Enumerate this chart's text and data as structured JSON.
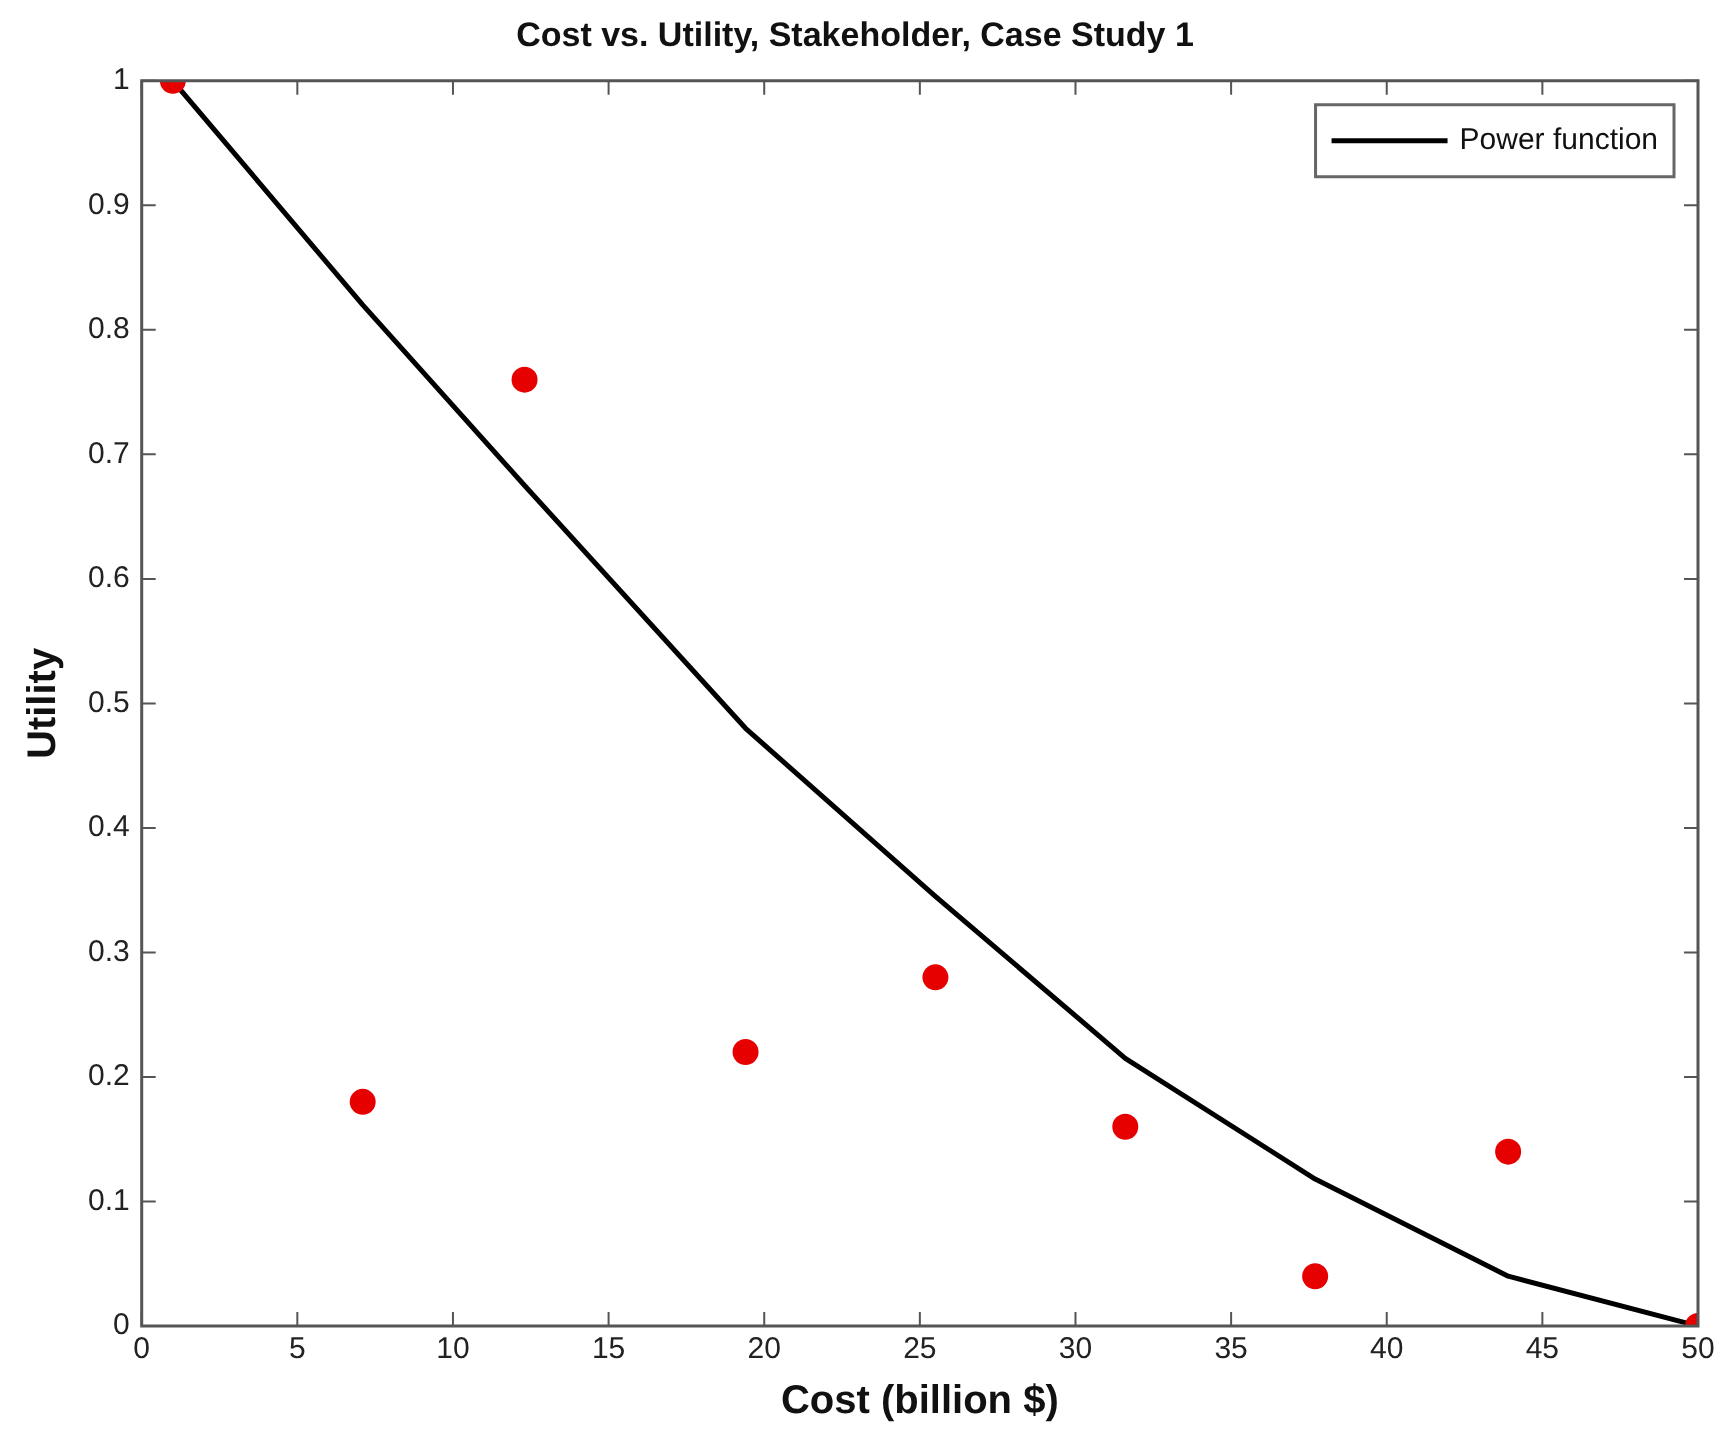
{
  "chart_data": {
    "type": "scatter",
    "title": "Cost vs. Utility, Stakeholder, Case Study 1",
    "xlabel": "Cost (billion $)",
    "ylabel": "Utility",
    "xlim": [
      0,
      50
    ],
    "xticks": [
      0,
      5,
      10,
      15,
      20,
      25,
      30,
      35,
      40,
      45,
      50
    ],
    "ylim": [
      0,
      1
    ],
    "yticks": [
      0,
      0.1,
      0.2,
      0.3,
      0.4,
      0.5,
      0.6,
      0.7,
      0.8,
      0.9,
      1
    ],
    "grid": false,
    "legend": "top right",
    "series": [
      {
        "type": "scatter",
        "color": "#e60000",
        "marker": "circle",
        "x": [
          1,
          7.1,
          12.3,
          19.4,
          25.5,
          31.6,
          37.7,
          43.9,
          50
        ],
        "values": [
          1,
          0.18,
          0.76,
          0.22,
          0.28,
          0.16,
          0.04,
          0.14,
          0
        ]
      },
      {
        "type": "line",
        "name": "Power function",
        "color": "#000000",
        "marker": "none",
        "line_style": "solid",
        "x": [
          1,
          7.1,
          12.3,
          19.4,
          25.5,
          31.6,
          37.7,
          43.9,
          50
        ],
        "values": [
          1,
          0.82,
          0.675,
          0.48,
          0.345,
          0.215,
          0.118,
          0.04,
          0
        ]
      }
    ]
  }
}
